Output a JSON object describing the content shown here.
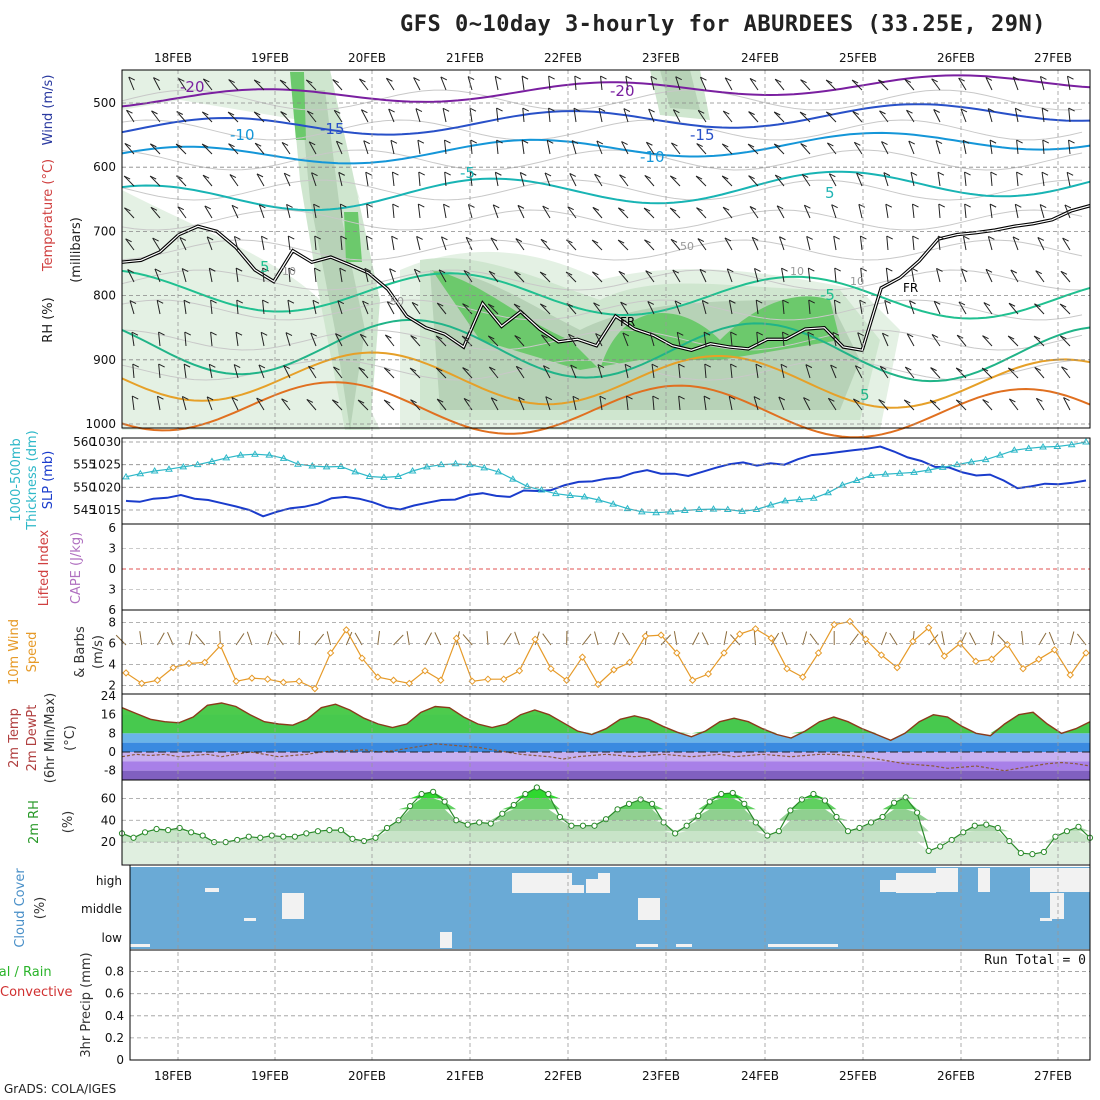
{
  "title": "GFS 0~10day 3-hourly for ABURDEES (33.25E, 29N)",
  "credit": "GrADS: COLA/IGES",
  "dates": [
    "18FEB",
    "19FEB",
    "20FEB",
    "21FEB",
    "22FEB",
    "23FEB",
    "24FEB",
    "25FEB",
    "26FEB",
    "27FEB"
  ],
  "colors": {
    "rh_green": "#3cb43c",
    "temp_purple": "#7a1fa0",
    "slp_blue": "#1a3ccc",
    "thick_cyan": "#2eb8c8",
    "wind_orange": "#e69a28",
    "cloud_blue": "#6aaad6",
    "rh2m_green": "#2ecf2e",
    "fr_line": "#000000"
  },
  "panel_labels": {
    "upper": [
      "RH (%)",
      "Temperature (°C)",
      "Wind (m/s)",
      "(millibars)"
    ],
    "slp": [
      "1000-500mb",
      "Thickness (dm)",
      "SLP (mb)"
    ],
    "cape": [
      "Lifted Index",
      "CAPE (J/kg)"
    ],
    "wind": [
      "10m Wind",
      "Speed",
      "& Barbs",
      "(m/s)"
    ],
    "temp": [
      "2m Temp",
      "2m DewPt",
      "(6hr Min/Max)",
      "(°C)"
    ],
    "rh2m": [
      "2m RH",
      "(%)"
    ],
    "cloud": [
      "Cloud Cover",
      "(%)"
    ],
    "precip": [
      "Total / Rain",
      "Convective",
      "3hr Precip (mm)"
    ]
  },
  "run_total": "Run Total = 0",
  "chart_data": [
    {
      "type": "contour",
      "name_printed": "",
      "ylabel": "millibars",
      "y_ticks": [
        "500",
        "600",
        "700",
        "800",
        "900",
        "1000"
      ],
      "temp_contour_labels": [
        "-20",
        "-15",
        "-10",
        "-5",
        "5",
        "-20",
        "-15",
        "-10",
        "-5",
        "5",
        "5"
      ],
      "rh_contour_labels": [
        "10",
        "50",
        "10",
        "50",
        "10"
      ],
      "freezing_level_label": "FR",
      "freezing_level_mb": [
        748,
        745,
        732,
        705,
        692,
        700,
        725,
        760,
        778,
        730,
        748,
        740,
        752,
        765,
        790,
        832,
        850,
        860,
        880,
        812,
        848,
        825,
        852,
        872,
        868,
        878,
        832,
        852,
        862,
        878,
        885,
        875,
        880,
        883,
        868,
        868,
        852,
        850,
        880,
        885,
        788,
        772,
        746,
        712,
        705,
        702,
        698,
        692,
        688,
        682,
        668,
        660
      ]
    },
    {
      "type": "line",
      "title": "",
      "ylabel_left": "1000-500mb Thickness (dm)",
      "ylabel_right": "SLP (mb)",
      "y_ticks_left": [
        "545",
        "550",
        "555",
        "560"
      ],
      "y_ticks_right": [
        "1015",
        "1020",
        "1025",
        "1030"
      ],
      "series": [
        {
          "name": "SLP (mb)",
          "axis": "right",
          "values": [
            1017,
            1016.8,
            1017.5,
            1017.7,
            1018.3,
            1017.5,
            1017.2,
            1016.5,
            1015.8,
            1015,
            1013.6,
            1014.6,
            1015.4,
            1015.7,
            1016.4,
            1017.6,
            1017.9,
            1017.5,
            1016.7,
            1015.6,
            1015.1,
            1016,
            1016.6,
            1017.2,
            1017.3,
            1018.3,
            1018.7,
            1018.1,
            1017.9,
            1019.3,
            1019.2,
            1019.4,
            1020.5,
            1021.2,
            1021.3,
            1021.9,
            1022.2,
            1023.2,
            1023.8,
            1023,
            1023,
            1022.5,
            1023.4,
            1024.3,
            1025.1,
            1025.5,
            1024.8,
            1025.3,
            1025,
            1026.2,
            1027.1,
            1027.4,
            1027.8,
            1028.2,
            1028.5,
            1029,
            1027.9,
            1026.6,
            1025.8,
            1024.5,
            1024.4,
            1023.3,
            1022.6,
            1022.8,
            1021.5,
            1019.8,
            1020.2,
            1020.8,
            1020.7,
            1021,
            1021.5
          ]
        },
        {
          "name": "1000-500mb Thickness (dm)",
          "axis": "left",
          "values": [
            552.3,
            553,
            553.6,
            554,
            554.5,
            555,
            555.7,
            556.5,
            557.1,
            557.3,
            557.1,
            556.4,
            555.1,
            554.7,
            554.5,
            554.6,
            553.4,
            552.4,
            552.2,
            552.4,
            553.6,
            554.5,
            555,
            555.2,
            555,
            554.3,
            553.4,
            551.8,
            550.2,
            549.4,
            548.6,
            548.2,
            547.9,
            547.2,
            546.3,
            545.3,
            544.6,
            544.4,
            544.6,
            544.9,
            545.1,
            545.2,
            545.1,
            544.7,
            545.1,
            546.1,
            547,
            547.3,
            547.6,
            548.8,
            550.5,
            551.5,
            552.6,
            552.9,
            553.1,
            553.3,
            553.8,
            554.4,
            555,
            555.6,
            556.1,
            557.1,
            558.2,
            558.6,
            558.9,
            559,
            559.4,
            560
          ]
        }
      ]
    },
    {
      "type": "line",
      "title": "",
      "ylabel_left": "Lifted Index",
      "ylabel_right": "CAPE (J/kg)",
      "y_ticks": [
        "-6",
        "-3",
        "0",
        "3",
        "6"
      ],
      "series": [
        {
          "name": "Lifted Index",
          "values": []
        }
      ]
    },
    {
      "type": "line",
      "title": "",
      "ylabel": "10m Wind Speed & Barbs (m/s)",
      "y_ticks": [
        "2",
        "4",
        "6",
        "8"
      ],
      "series": [
        {
          "name": "10m Wind Speed",
          "values": [
            3.2,
            2.2,
            2.5,
            3.7,
            4.1,
            4.2,
            5.8,
            2.4,
            2.7,
            2.6,
            2.3,
            2.4,
            1.7,
            5.1,
            7.3,
            4.6,
            2.8,
            2.5,
            2.2,
            3.4,
            2.5,
            6.5,
            2.4,
            2.6,
            2.6,
            3.4,
            6.4,
            3.6,
            2.5,
            4.7,
            2.1,
            3.5,
            4.2,
            6.7,
            6.8,
            5.1,
            2.5,
            3.1,
            5.1,
            6.9,
            7.4,
            6.5,
            3.6,
            2.8,
            5.1,
            7.8,
            8.1,
            6.4,
            4.9,
            3.7,
            6.2,
            7.5,
            4.8,
            6,
            4.3,
            4.5,
            5.9,
            3.6,
            4.5,
            5.4,
            3,
            5.1
          ]
        }
      ]
    },
    {
      "type": "area",
      "title": "",
      "ylabel": "2m Temp / 2m DewPt (6hr Min/Max) (°C)",
      "y_ticks": [
        "-8",
        "0",
        "8",
        "16",
        "24"
      ],
      "series": [
        {
          "name": "2m Temp",
          "values": [
            19,
            16.5,
            14,
            13,
            12.5,
            15,
            20,
            21,
            19.5,
            16,
            13,
            12,
            11.5,
            14,
            19,
            20.5,
            18,
            14.5,
            12,
            10.5,
            12,
            17,
            19.5,
            19,
            15,
            12,
            10.5,
            12,
            16,
            18,
            16,
            12.5,
            9,
            7.5,
            10,
            14,
            15.5,
            14,
            11,
            8.5,
            6.5,
            9,
            13,
            14.5,
            13,
            10,
            7.5,
            6,
            9,
            13,
            15,
            13,
            10,
            7.5,
            5,
            8,
            13,
            16,
            15,
            11,
            8,
            7,
            12,
            16,
            17,
            12,
            8,
            10,
            13
          ]
        },
        {
          "name": "2m DewPt",
          "values": [
            -2,
            -1,
            -1.5,
            -1,
            -2,
            -1.5,
            -1,
            -2,
            -1,
            0,
            -1,
            -2,
            -1.5,
            -1,
            0,
            0.5,
            0.5,
            1,
            0,
            0.5,
            1.5,
            2.5,
            3.5,
            3,
            2.5,
            2,
            1,
            0,
            -1,
            -1.5,
            -2,
            -3,
            -2,
            -1.5,
            -1,
            -1.5,
            -2,
            -1.5,
            -1,
            -1.5,
            -2,
            -1.5,
            -1,
            -2,
            -1.5,
            -1,
            -1.5,
            -2,
            -1.5,
            -1,
            -1,
            -1.5,
            -2,
            -3,
            -4,
            -5,
            -5.5,
            -6,
            -7,
            -6.5,
            -6,
            -7,
            -8,
            -7,
            -6,
            -5,
            -4.5,
            -5,
            -6
          ]
        }
      ]
    },
    {
      "type": "area",
      "title": "",
      "ylabel": "2m RH (%)",
      "y_ticks": [
        "20",
        "40",
        "60"
      ],
      "series": [
        {
          "name": "2m RH",
          "values": [
            28,
            24,
            29,
            32,
            31,
            33,
            29,
            26,
            20,
            20,
            22,
            25,
            24,
            26,
            25,
            25,
            28,
            30,
            31,
            31,
            23,
            21,
            24,
            33,
            40,
            53,
            64,
            66,
            57,
            40,
            36,
            38,
            37,
            46,
            54,
            64,
            70,
            64,
            43,
            35,
            35,
            35,
            41,
            50,
            55,
            59,
            55,
            38,
            28,
            35,
            44,
            57,
            64,
            65,
            55,
            38,
            26,
            30,
            49,
            59,
            64,
            58,
            43,
            30,
            33,
            38,
            43,
            56,
            61,
            47,
            12,
            16,
            22,
            29,
            35,
            36,
            33,
            21,
            10,
            9,
            11,
            25,
            30,
            34,
            24
          ]
        }
      ]
    },
    {
      "type": "heatmap",
      "title": "",
      "ylabel": "Cloud Cover (%)",
      "y_ticks": [
        "high",
        "middle",
        "low"
      ]
    },
    {
      "type": "bar",
      "title": "",
      "ylabel": "3hr Precip (mm)",
      "y_ticks": [
        "0",
        "0.2",
        "0.4",
        "0.6",
        "0.8"
      ],
      "series": [
        {
          "name": "Total / Rain",
          "values": []
        },
        {
          "name": "Convective",
          "values": []
        }
      ]
    }
  ]
}
